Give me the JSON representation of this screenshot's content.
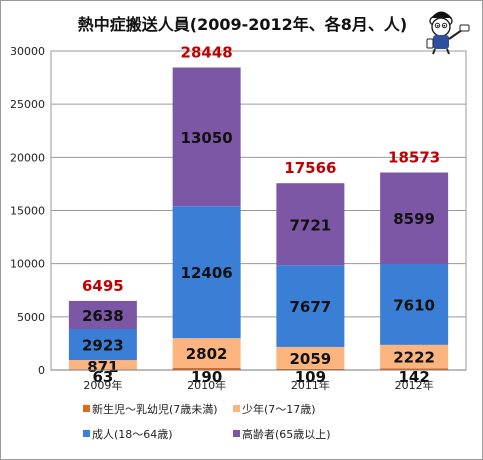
{
  "chart_data": {
    "type": "bar",
    "stacked": true,
    "title": "熱中症搬送人員(2009-2012年、各8月、人)",
    "categories": [
      "2009年",
      "2010年",
      "2011年",
      "2012年"
    ],
    "series": [
      {
        "name": "新生児〜乳幼児(7歳未満)",
        "values": [
          63,
          190,
          109,
          142
        ],
        "color": "#e06a1a"
      },
      {
        "name": "少年(7〜17歳)",
        "values": [
          871,
          2802,
          2059,
          2222
        ],
        "color": "#fcb57f"
      },
      {
        "name": "成人(18〜64歳)",
        "values": [
          2923,
          12406,
          7677,
          7610
        ],
        "color": "#3a7fd5"
      },
      {
        "name": "高齢者(65歳以上)",
        "values": [
          2638,
          13050,
          7721,
          8599
        ],
        "color": "#7c57a6"
      }
    ],
    "totals": [
      6495,
      28448,
      17566,
      18573
    ],
    "total_color": "#c00000",
    "ylim": [
      0,
      30000
    ],
    "yticks": [
      0,
      5000,
      10000,
      15000,
      20000,
      25000,
      30000
    ],
    "grid": true,
    "legend": "bottom"
  }
}
